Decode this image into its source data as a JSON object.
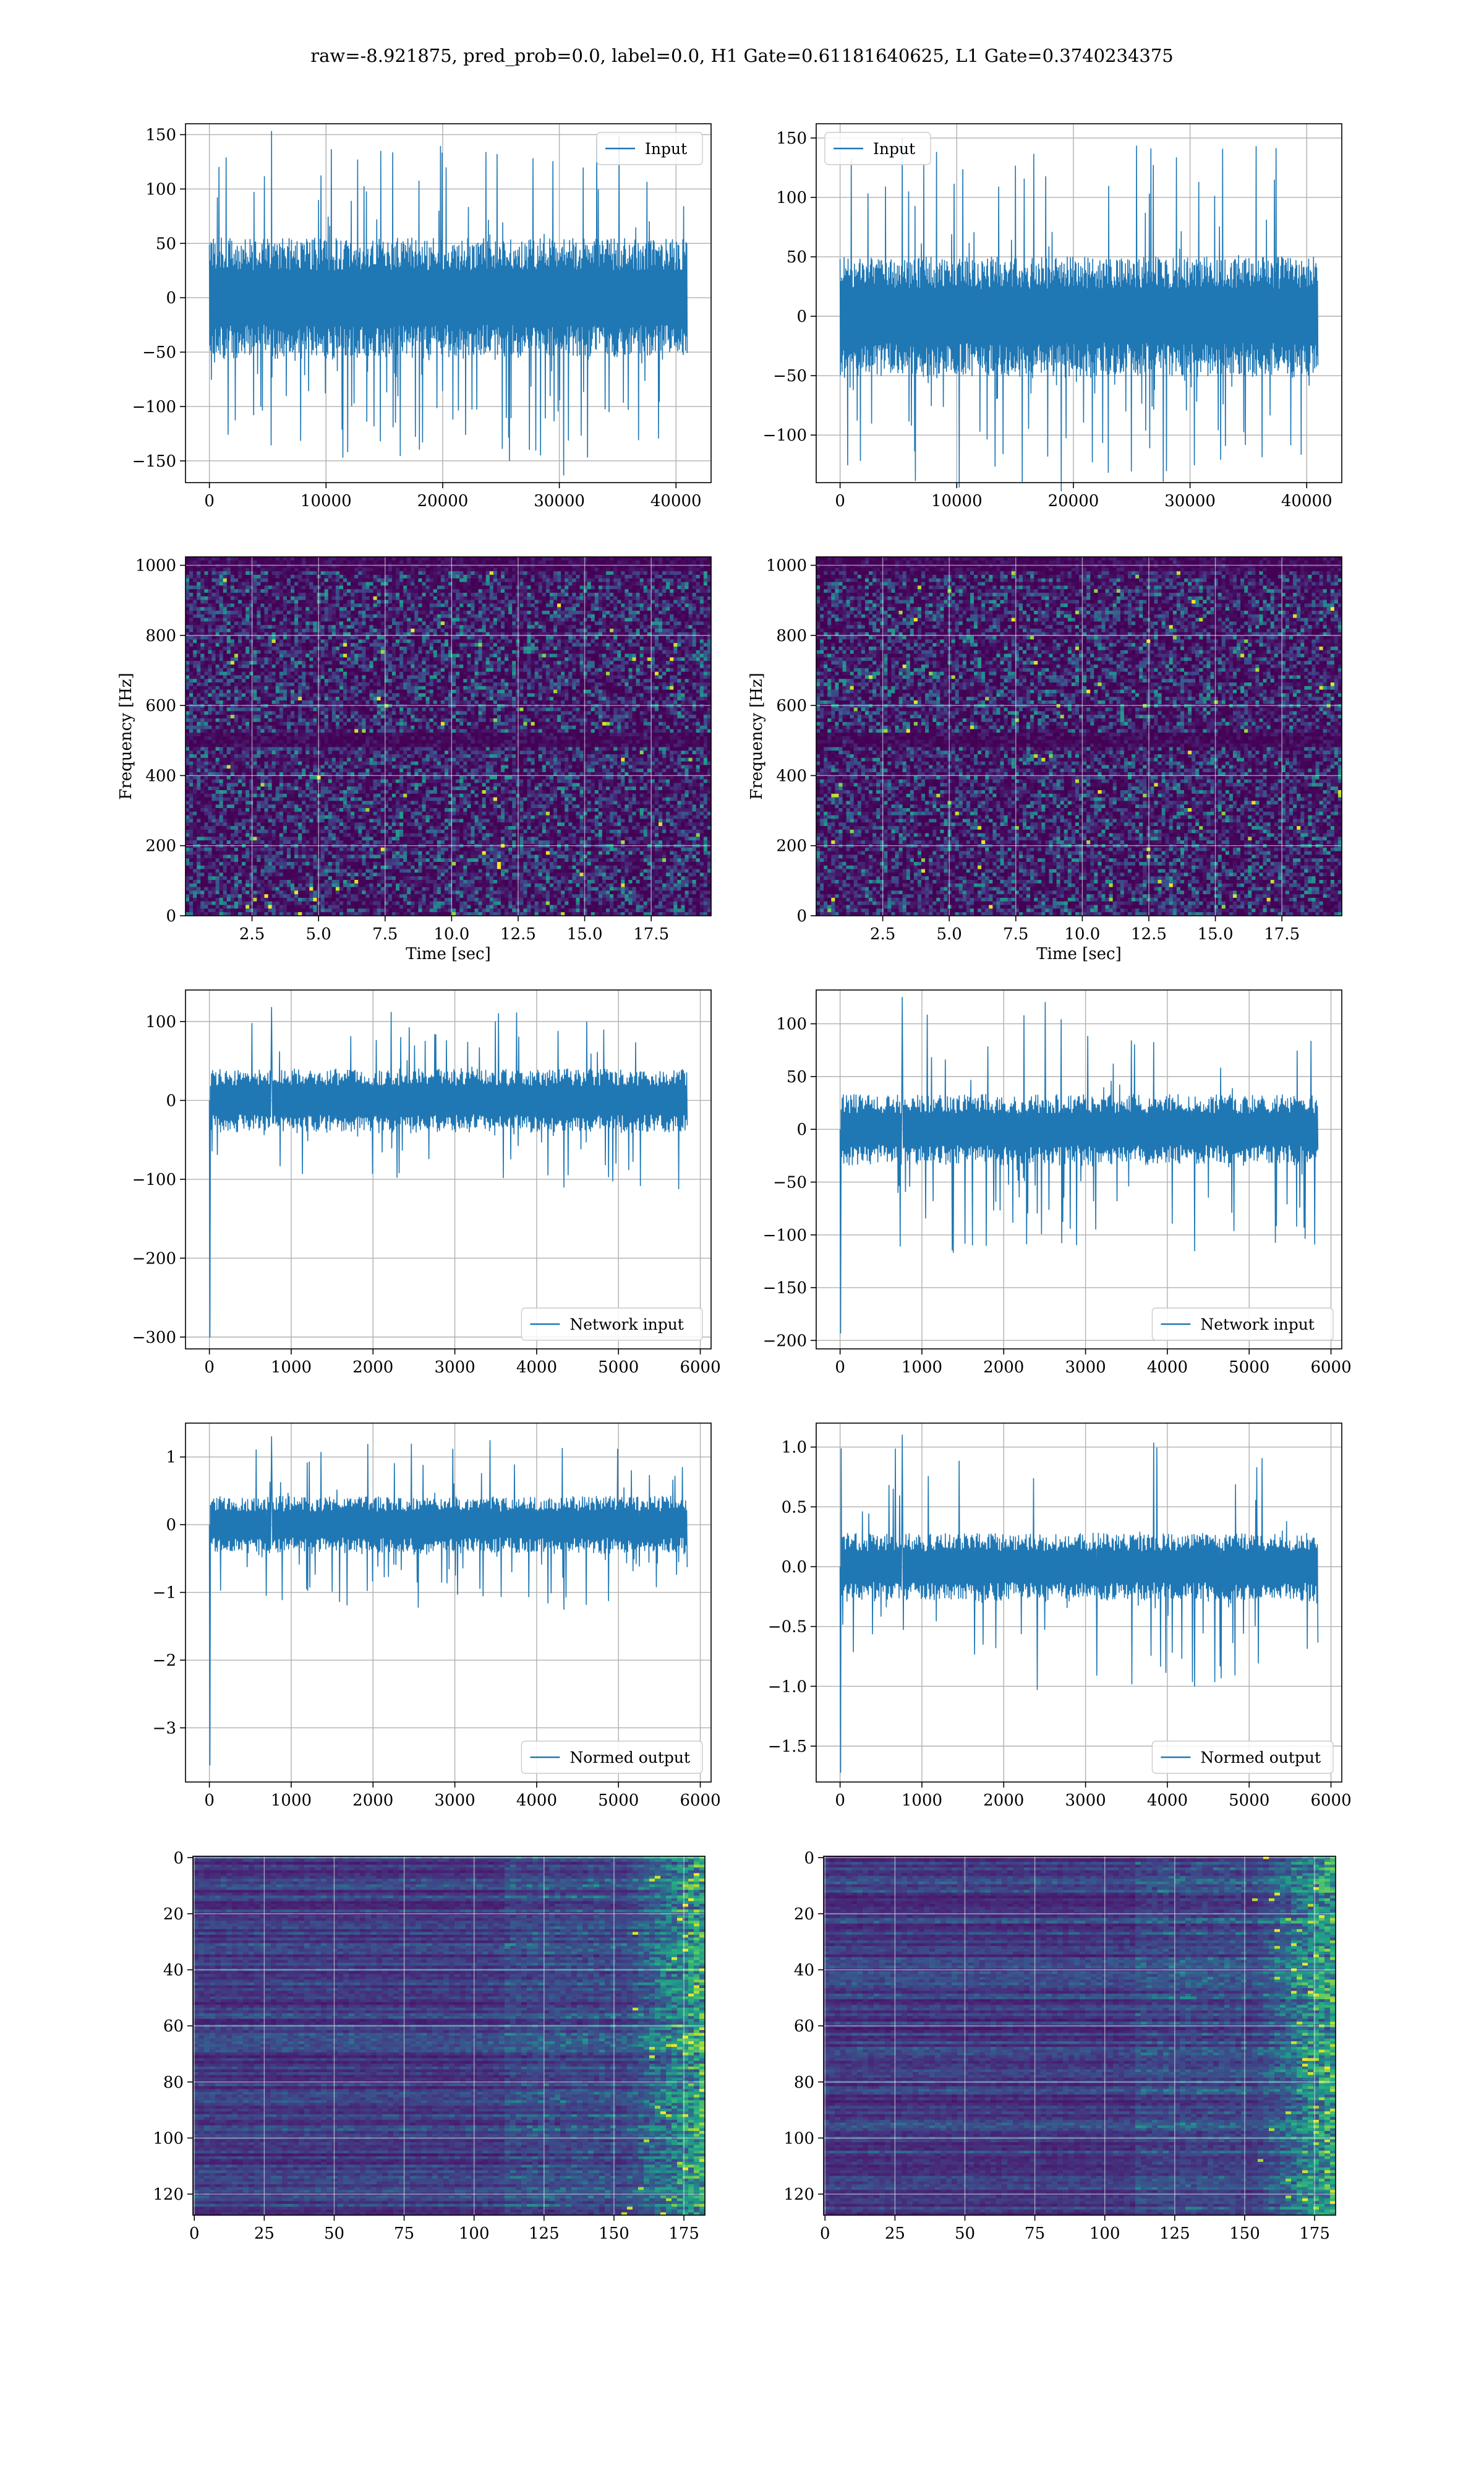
{
  "suptitle": "raw=-8.921875, pred_prob=0.0, label=0.0, H1 Gate=0.61181640625, L1 Gate=0.3740234375",
  "colors": {
    "line": "#1f77b4",
    "grid": "#b0b0b0",
    "axes": "#000000",
    "viridis_dark": "#440154",
    "viridis_mid": "#21918c",
    "viridis_bright": "#fde725"
  },
  "chart_data": [
    {
      "id": "h1-input",
      "type": "line",
      "legend": "Input",
      "legend_loc": "upper right",
      "xlim": [
        -2048,
        43008
      ],
      "ylim": [
        -170,
        160
      ],
      "xticks": [
        0,
        10000,
        20000,
        30000,
        40000
      ],
      "xtick_labels": [
        "0",
        "10000",
        "20000",
        "30000",
        "40000"
      ],
      "yticks": [
        -150,
        -100,
        -50,
        0,
        50,
        100,
        150
      ],
      "ytick_labels": [
        "−150",
        "−100",
        "−50",
        "0",
        "50",
        "100",
        "150"
      ],
      "signal": {
        "x_start": 0,
        "x_end": 40960,
        "body_amplitude": 55,
        "peak_max": 153,
        "peak_min": -163,
        "n_samples": 1200
      }
    },
    {
      "id": "l1-input",
      "type": "line",
      "legend": "Input",
      "legend_loc": "upper left",
      "xlim": [
        -2048,
        43008
      ],
      "ylim": [
        -140,
        162
      ],
      "xticks": [
        0,
        10000,
        20000,
        30000,
        40000
      ],
      "xtick_labels": [
        "0",
        "10000",
        "20000",
        "30000",
        "40000"
      ],
      "yticks": [
        -100,
        -50,
        0,
        50,
        100,
        150
      ],
      "ytick_labels": [
        "−100",
        "−50",
        "0",
        "50",
        "100",
        "150"
      ],
      "signal": {
        "x_start": 0,
        "x_end": 40960,
        "body_amplitude": 50,
        "peak_max": 150,
        "peak_min": -125,
        "n_samples": 1200
      }
    },
    {
      "id": "h1-spectrogram",
      "type": "heatmap",
      "colormap": "viridis",
      "xlabel": "Time [sec]",
      "ylabel": "Frequency [Hz]",
      "xlim": [
        0.0,
        19.75
      ],
      "ylim": [
        0,
        1024
      ],
      "xticks": [
        2.5,
        5.0,
        7.5,
        10.0,
        12.5,
        15.0,
        17.5
      ],
      "xtick_labels": [
        "2.5",
        "5.0",
        "7.5",
        "10.0",
        "12.5",
        "15.0",
        "17.5"
      ],
      "yticks": [
        0,
        200,
        400,
        600,
        800,
        1000
      ],
      "ytick_labels": [
        "0",
        "200",
        "400",
        "600",
        "800",
        "1000"
      ],
      "grid": true,
      "dark_bands_hz": [
        500,
        1010
      ]
    },
    {
      "id": "l1-spectrogram",
      "type": "heatmap",
      "colormap": "viridis",
      "xlabel": "Time [sec]",
      "ylabel": "Frequency [Hz]",
      "xlim": [
        0.0,
        19.75
      ],
      "ylim": [
        0,
        1024
      ],
      "xticks": [
        2.5,
        5.0,
        7.5,
        10.0,
        12.5,
        15.0,
        17.5
      ],
      "xtick_labels": [
        "2.5",
        "5.0",
        "7.5",
        "10.0",
        "12.5",
        "15.0",
        "17.5"
      ],
      "yticks": [
        0,
        200,
        400,
        600,
        800,
        1000
      ],
      "ytick_labels": [
        "0",
        "200",
        "400",
        "600",
        "800",
        "1000"
      ],
      "grid": true,
      "dark_bands_hz": [
        500,
        1010
      ]
    },
    {
      "id": "h1-network-input",
      "type": "line",
      "legend": "Network input",
      "legend_loc": "lower right",
      "xlim": [
        -292,
        6132
      ],
      "ylim": [
        -315,
        140
      ],
      "xticks": [
        0,
        1000,
        2000,
        3000,
        4000,
        5000,
        6000
      ],
      "xtick_labels": [
        "0",
        "1000",
        "2000",
        "3000",
        "4000",
        "5000",
        "6000"
      ],
      "yticks": [
        -300,
        -200,
        -100,
        0,
        100
      ],
      "ytick_labels": [
        "−300",
        "−200",
        "−100",
        "0",
        "100"
      ],
      "signal": {
        "x_start": 0,
        "x_end": 5840,
        "body_amplitude": 40,
        "peak_max": 118,
        "peak_min": -110,
        "initial_spike": -300,
        "n_samples": 900
      }
    },
    {
      "id": "l1-network-input",
      "type": "line",
      "legend": "Network input",
      "legend_loc": "lower right",
      "xlim": [
        -292,
        6132
      ],
      "ylim": [
        -208,
        132
      ],
      "xticks": [
        0,
        1000,
        2000,
        3000,
        4000,
        5000,
        6000
      ],
      "xtick_labels": [
        "0",
        "1000",
        "2000",
        "3000",
        "4000",
        "5000",
        "6000"
      ],
      "yticks": [
        -200,
        -150,
        -100,
        -50,
        0,
        50,
        100
      ],
      "ytick_labels": [
        "−200",
        "−150",
        "−100",
        "−50",
        "0",
        "50",
        "100"
      ],
      "signal": {
        "x_start": 0,
        "x_end": 5840,
        "body_amplitude": 33,
        "peak_max": 125,
        "peak_min": -115,
        "initial_spike": -193,
        "n_samples": 900
      }
    },
    {
      "id": "h1-normed-output",
      "type": "line",
      "legend": "Normed output",
      "legend_loc": "lower right",
      "xlim": [
        -292,
        6132
      ],
      "ylim": [
        -3.8,
        1.5
      ],
      "xticks": [
        0,
        1000,
        2000,
        3000,
        4000,
        5000,
        6000
      ],
      "xtick_labels": [
        "0",
        "1000",
        "2000",
        "3000",
        "4000",
        "5000",
        "6000"
      ],
      "yticks": [
        -3,
        -2,
        -1,
        0,
        1
      ],
      "ytick_labels": [
        "−3",
        "−2",
        "−1",
        "0",
        "1"
      ],
      "signal": {
        "x_start": 0,
        "x_end": 5840,
        "body_amplitude": 0.42,
        "peak_max": 1.3,
        "peak_min": -1.25,
        "initial_spike": -3.55,
        "n_samples": 900
      }
    },
    {
      "id": "l1-normed-output",
      "type": "line",
      "legend": "Normed output",
      "legend_loc": "lower right",
      "xlim": [
        -292,
        6132
      ],
      "ylim": [
        -1.8,
        1.2
      ],
      "xticks": [
        0,
        1000,
        2000,
        3000,
        4000,
        5000,
        6000
      ],
      "xtick_labels": [
        "0",
        "1000",
        "2000",
        "3000",
        "4000",
        "5000",
        "6000"
      ],
      "yticks": [
        -1.5,
        -1.0,
        -0.5,
        0.0,
        0.5,
        1.0
      ],
      "ytick_labels": [
        "−1.5",
        "−1.0",
        "−0.5",
        "0.0",
        "0.5",
        "1.0"
      ],
      "signal": {
        "x_start": 0,
        "x_end": 5840,
        "body_amplitude": 0.28,
        "peak_max": 1.1,
        "peak_min": -1.0,
        "initial_spike": -1.72,
        "n_samples": 900
      }
    },
    {
      "id": "h1-feature-map",
      "type": "heatmap",
      "colormap": "viridis",
      "xlim": [
        -0.5,
        182.5
      ],
      "ylim": [
        127.5,
        -0.5
      ],
      "y_inverted": true,
      "xticks": [
        0,
        25,
        50,
        75,
        100,
        125,
        150,
        175
      ],
      "xtick_labels": [
        "0",
        "25",
        "50",
        "75",
        "100",
        "125",
        "150",
        "175"
      ],
      "yticks": [
        0,
        20,
        40,
        60,
        80,
        100,
        120
      ],
      "ytick_labels": [
        "0",
        "20",
        "40",
        "60",
        "80",
        "100",
        "120"
      ],
      "grid": true,
      "bright_columns_from": 150
    },
    {
      "id": "l1-feature-map",
      "type": "heatmap",
      "colormap": "viridis",
      "xlim": [
        -0.5,
        182.5
      ],
      "ylim": [
        127.5,
        -0.5
      ],
      "y_inverted": true,
      "xticks": [
        0,
        25,
        50,
        75,
        100,
        125,
        150,
        175
      ],
      "xtick_labels": [
        "0",
        "25",
        "50",
        "75",
        "100",
        "125",
        "150",
        "175"
      ],
      "yticks": [
        0,
        20,
        40,
        60,
        80,
        100,
        120
      ],
      "ytick_labels": [
        "0",
        "20",
        "40",
        "60",
        "80",
        "100",
        "120"
      ],
      "grid": true,
      "bright_columns_from": 150
    }
  ]
}
